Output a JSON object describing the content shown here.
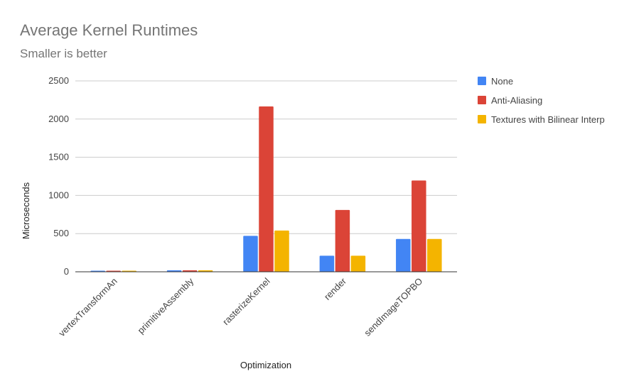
{
  "chart_data": {
    "type": "bar",
    "title": "Average Kernel Runtimes",
    "subtitle": "Smaller is better",
    "xlabel": "Optimization",
    "ylabel": "Microseconds",
    "ylim": [
      0,
      2500
    ],
    "yticks": [
      0,
      500,
      1000,
      1500,
      2000,
      2500
    ],
    "grid": true,
    "legend_position": "right",
    "categories": [
      "vertexTransformAn",
      "primitiveAssembly",
      "rasterizeKernel",
      "render",
      "sendImageTOPBO"
    ],
    "series": [
      {
        "name": "None",
        "color": "#4285f4",
        "values": [
          10,
          20,
          470,
          210,
          430
        ]
      },
      {
        "name": "Anti-Aliasing",
        "color": "#db4437",
        "values": [
          10,
          20,
          2165,
          810,
          1195
        ]
      },
      {
        "name": "Textures with Bilinear Interp",
        "color": "#f4b400",
        "values": [
          10,
          20,
          540,
          210,
          430
        ]
      }
    ]
  }
}
